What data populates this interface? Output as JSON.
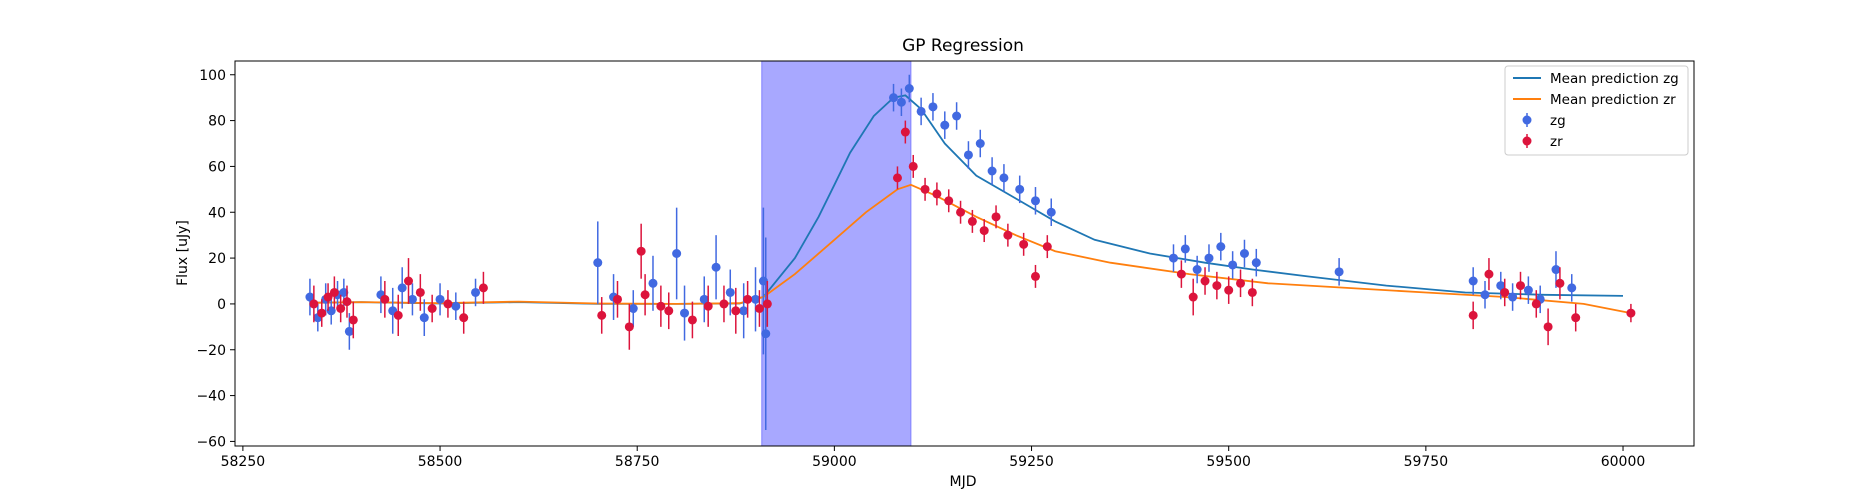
{
  "chart_data": {
    "type": "scatter",
    "title": "GP Regression",
    "xlabel": "MJD",
    "ylabel": "Flux [uJy]",
    "xlim": [
      58240,
      60090
    ],
    "ylim": [
      -62,
      106
    ],
    "xticks": [
      58250,
      58500,
      58750,
      59000,
      59250,
      59500,
      59750,
      60000
    ],
    "yticks": [
      -60,
      -40,
      -20,
      0,
      20,
      40,
      60,
      80,
      100
    ],
    "grid": false,
    "legend_position": "top-right",
    "shaded_region": {
      "x0": 58908,
      "x1": 59097,
      "color": "#a8a8ff"
    },
    "series": [
      {
        "name": "Mean prediction zg",
        "kind": "line",
        "color": "#1f77b4",
        "x": [
          58335,
          58400,
          58500,
          58600,
          58700,
          58800,
          58880,
          58910,
          58950,
          58980,
          59000,
          59020,
          59050,
          59075,
          59090,
          59110,
          59140,
          59180,
          59230,
          59280,
          59330,
          59400,
          59470,
          59530,
          59600,
          59700,
          59800,
          59900,
          60000
        ],
        "y": [
          0.5,
          0.8,
          0.2,
          0.8,
          0.0,
          0.0,
          0.2,
          3,
          20,
          38,
          52,
          66,
          82,
          90,
          91,
          85,
          70,
          56,
          46,
          36,
          28,
          22,
          18,
          15,
          12,
          8,
          5,
          4,
          3.5
        ]
      },
      {
        "name": "Mean prediction zr",
        "kind": "line",
        "color": "#ff7f0e",
        "x": [
          58335,
          58400,
          58500,
          58600,
          58700,
          58800,
          58880,
          58910,
          58950,
          59000,
          59040,
          59080,
          59097,
          59130,
          59180,
          59230,
          59280,
          59350,
          59450,
          59550,
          59650,
          59750,
          59850,
          59950,
          60010
        ],
        "y": [
          0.5,
          0.8,
          0.3,
          1.0,
          0.2,
          0.0,
          0.3,
          3,
          13,
          28,
          40,
          50,
          52,
          47,
          38,
          30,
          23,
          18,
          13,
          9,
          7,
          5,
          3,
          0,
          -4
        ]
      },
      {
        "name": "zg",
        "kind": "errorbar",
        "color": "#4169e1",
        "x": [
          58335,
          58345,
          58355,
          58362,
          58370,
          58378,
          58385,
          58425,
          58440,
          58452,
          58465,
          58480,
          58500,
          58520,
          58545,
          58700,
          58720,
          58745,
          58770,
          58800,
          58810,
          58835,
          58850,
          58868,
          58885,
          58900,
          58910,
          58913,
          59075,
          59085,
          59095,
          59110,
          59125,
          59140,
          59155,
          59170,
          59185,
          59200,
          59215,
          59235,
          59255,
          59275,
          59430,
          59445,
          59460,
          59475,
          59490,
          59505,
          59520,
          59535,
          59640,
          59810,
          59825,
          59845,
          59860,
          59880,
          59895,
          59915,
          59935
        ],
        "y": [
          3,
          -6,
          2,
          -3,
          4,
          5,
          -12,
          4,
          -3,
          7,
          2,
          -6,
          2,
          -1,
          5,
          18,
          3,
          -2,
          9,
          22,
          -4,
          2,
          16,
          5,
          -3,
          2,
          10,
          -13,
          90,
          88,
          94,
          84,
          86,
          78,
          82,
          65,
          70,
          58,
          55,
          50,
          45,
          40,
          20,
          24,
          15,
          20,
          25,
          17,
          22,
          18,
          14,
          10,
          4,
          8,
          3,
          6,
          2,
          15,
          7
        ],
        "err": [
          8,
          6,
          7,
          6,
          6,
          6,
          8,
          8,
          10,
          9,
          7,
          8,
          7,
          6,
          6,
          18,
          10,
          8,
          12,
          20,
          12,
          10,
          14,
          10,
          12,
          14,
          32,
          42,
          6,
          6,
          6,
          6,
          6,
          6,
          6,
          6,
          6,
          6,
          6,
          6,
          6,
          6,
          6,
          6,
          6,
          6,
          6,
          6,
          6,
          6,
          6,
          6,
          6,
          6,
          6,
          6,
          6,
          8,
          6
        ]
      },
      {
        "name": "zr",
        "kind": "errorbar",
        "color": "#dc143c",
        "x": [
          58340,
          58350,
          58358,
          58366,
          58374,
          58382,
          58390,
          58430,
          58447,
          58460,
          58475,
          58490,
          58510,
          58530,
          58555,
          58705,
          58725,
          58740,
          58755,
          58760,
          58780,
          58790,
          58820,
          58840,
          58860,
          58875,
          58890,
          58905,
          58915,
          59080,
          59090,
          59100,
          59115,
          59130,
          59145,
          59160,
          59175,
          59190,
          59205,
          59220,
          59240,
          59255,
          59270,
          59440,
          59455,
          59470,
          59485,
          59500,
          59515,
          59530,
          59810,
          59830,
          59850,
          59870,
          59890,
          59905,
          59920,
          59940,
          60010
        ],
        "y": [
          0,
          -4,
          3,
          5,
          -2,
          1,
          -7,
          2,
          -5,
          10,
          5,
          -2,
          0,
          -6,
          7,
          -5,
          2,
          -10,
          23,
          4,
          -1,
          -3,
          -7,
          -1,
          0,
          -3,
          2,
          -2,
          0,
          55,
          75,
          60,
          50,
          48,
          45,
          40,
          36,
          32,
          38,
          30,
          26,
          12,
          25,
          13,
          3,
          10,
          8,
          6,
          9,
          5,
          -5,
          13,
          5,
          8,
          0,
          -10,
          9,
          -6,
          -4
        ],
        "err": [
          8,
          6,
          6,
          7,
          6,
          7,
          8,
          8,
          9,
          10,
          8,
          6,
          6,
          7,
          7,
          8,
          8,
          10,
          12,
          9,
          9,
          8,
          8,
          9,
          8,
          10,
          8,
          8,
          10,
          5,
          5,
          5,
          5,
          5,
          5,
          5,
          5,
          5,
          5,
          5,
          5,
          5,
          5,
          6,
          8,
          6,
          6,
          6,
          6,
          6,
          6,
          7,
          6,
          6,
          6,
          8,
          7,
          6,
          4
        ]
      }
    ]
  }
}
